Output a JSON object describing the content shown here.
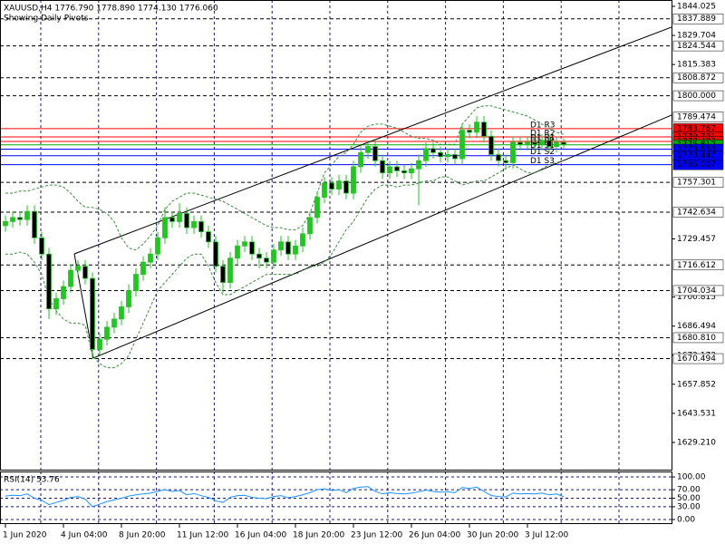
{
  "chart_data": {
    "type": "candlestick",
    "title": "XAUUSD,H4  1776.790 1778.890 1774.130 1776.060",
    "subtitle": "Showing Daily Pivots",
    "categories": [
      "1 Jun 2020",
      null,
      null,
      null,
      null,
      null,
      null,
      null,
      "4 Jun 04:00",
      null,
      null,
      null,
      null,
      null,
      null,
      null,
      "8 Jun 20:00",
      null,
      null,
      null,
      null,
      null,
      null,
      null,
      "11 Jun 12:00",
      null,
      null,
      null,
      null,
      null,
      null,
      null,
      "16 Jun 04:00",
      null,
      null,
      null,
      null,
      null,
      null,
      null,
      "18 Jun 20:00",
      null,
      null,
      null,
      null,
      null,
      null,
      null,
      "23 Jun 12:00",
      null,
      null,
      null,
      null,
      null,
      null,
      null,
      "26 Jun 04:00",
      null,
      null,
      null,
      null,
      null,
      null,
      null,
      "30 Jun 20:00",
      null,
      null,
      null,
      null,
      null,
      null,
      null,
      "3 Jul 12:00",
      null,
      null,
      null,
      null,
      null
    ],
    "open": [
      1736,
      1738,
      1740,
      1739,
      1743,
      1730,
      1722,
      1695,
      1700,
      1706,
      1714,
      1716,
      1710,
      1675,
      1680,
      1686,
      1690,
      1696,
      1704,
      1712,
      1718,
      1722,
      1730,
      1740,
      1738,
      1742,
      1735,
      1738,
      1733,
      1728,
      1716,
      1708,
      1720,
      1726,
      1728,
      1722,
      1720,
      1718,
      1724,
      1728,
      1722,
      1726,
      1732,
      1740,
      1750,
      1757,
      1754,
      1758,
      1752,
      1765,
      1772,
      1775,
      1768,
      1762,
      1765,
      1763,
      1762,
      1764,
      1768,
      1774,
      1772,
      1770,
      1771,
      1769,
      1783,
      1782,
      1787,
      1780,
      1771,
      1768,
      1767,
      1777,
      1776,
      1777,
      1776,
      1778,
      1775,
      1777
    ],
    "high": [
      1741,
      1743,
      1743,
      1746,
      1746,
      1733,
      1725,
      1703,
      1709,
      1717,
      1719,
      1719,
      1713,
      1683,
      1689,
      1693,
      1699,
      1707,
      1715,
      1721,
      1725,
      1733,
      1745,
      1743,
      1747,
      1745,
      1741,
      1741,
      1736,
      1731,
      1719,
      1723,
      1729,
      1731,
      1731,
      1725,
      1723,
      1727,
      1731,
      1731,
      1729,
      1735,
      1743,
      1753,
      1760,
      1760,
      1761,
      1761,
      1768,
      1775,
      1778,
      1778,
      1771,
      1768,
      1768,
      1766,
      1767,
      1771,
      1777,
      1777,
      1775,
      1774,
      1774,
      1786,
      1786,
      1790,
      1790,
      1783,
      1774,
      1771,
      1780,
      1780,
      1780,
      1780,
      1781,
      1781,
      1780,
      1779
    ],
    "low": [
      1733,
      1735,
      1736,
      1736,
      1727,
      1719,
      1690,
      1692,
      1697,
      1703,
      1711,
      1707,
      1670.5,
      1672,
      1677,
      1683,
      1687,
      1693,
      1701,
      1709,
      1715,
      1719,
      1727,
      1735,
      1735,
      1732,
      1732,
      1730,
      1725,
      1713,
      1703,
      1705,
      1717,
      1723,
      1719,
      1715,
      1715,
      1715,
      1721,
      1719,
      1719,
      1723,
      1729,
      1737,
      1747,
      1751,
      1751,
      1749,
      1749,
      1762,
      1769,
      1765,
      1759,
      1759,
      1760,
      1759,
      1759,
      1746,
      1765,
      1769,
      1767,
      1767,
      1766,
      1766,
      1779,
      1779,
      1777,
      1768,
      1765,
      1764,
      1764,
      1773,
      1773,
      1773,
      1773,
      1772,
      1772,
      1774
    ],
    "close": [
      1738,
      1740,
      1739,
      1743,
      1730,
      1722,
      1695,
      1700,
      1706,
      1714,
      1716,
      1710,
      1675,
      1680,
      1686,
      1690,
      1696,
      1704,
      1712,
      1718,
      1722,
      1730,
      1740,
      1738,
      1742,
      1735,
      1738,
      1733,
      1728,
      1716,
      1708,
      1720,
      1726,
      1728,
      1722,
      1720,
      1718,
      1724,
      1728,
      1722,
      1726,
      1732,
      1740,
      1750,
      1757,
      1754,
      1758,
      1752,
      1765,
      1772,
      1775,
      1768,
      1762,
      1765,
      1763,
      1762,
      1764,
      1768,
      1774,
      1772,
      1770,
      1771,
      1769,
      1783,
      1782,
      1787,
      1780,
      1771,
      1768,
      1767,
      1777,
      1776,
      1777,
      1776,
      1778,
      1775,
      1777,
      1776
    ],
    "up_color": "#22c522",
    "down_color": "#000000",
    "wick_color": "#22c522",
    "bollinger": {
      "color": "#3a8f3a",
      "upper": [
        1752,
        1752,
        1753,
        1753,
        1754,
        1755,
        1756,
        1756,
        1755,
        1752,
        1748,
        1745,
        1745,
        1744,
        1742,
        1738,
        1730,
        1725,
        1724,
        1727,
        1731,
        1736,
        1744,
        1748,
        1750,
        1752,
        1752,
        1751,
        1750,
        1749,
        1748,
        1746,
        1744,
        1742,
        1740,
        1738,
        1736,
        1735,
        1735,
        1734,
        1734,
        1736,
        1742,
        1752,
        1762,
        1766,
        1770,
        1772,
        1776,
        1782,
        1785,
        1786,
        1786,
        1785,
        1784,
        1782,
        1780,
        1779,
        1779,
        1778,
        1776,
        1776,
        1776,
        1786,
        1790,
        1794,
        1795,
        1795,
        1794,
        1793,
        1792,
        1791,
        1790,
        1788,
        1786,
        1784,
        1782,
        1781
      ],
      "lower": [
        1722,
        1722,
        1723,
        1722,
        1718,
        1712,
        1700,
        1694,
        1690,
        1688,
        1688,
        1687,
        1672,
        1668,
        1666,
        1666,
        1668,
        1672,
        1680,
        1688,
        1696,
        1704,
        1708,
        1712,
        1716,
        1720,
        1722,
        1722,
        1716,
        1708,
        1702,
        1702,
        1704,
        1706,
        1708,
        1710,
        1712,
        1712,
        1712,
        1712,
        1712,
        1714,
        1716,
        1716,
        1718,
        1722,
        1728,
        1734,
        1738,
        1744,
        1750,
        1754,
        1756,
        1756,
        1755,
        1756,
        1756,
        1757,
        1758,
        1758,
        1760,
        1760,
        1758,
        1756,
        1757,
        1758,
        1758,
        1760,
        1762,
        1764,
        1766,
        1764,
        1762,
        1762,
        1764,
        1766,
        1767,
        1768
      ]
    },
    "ylim": [
      1615.8,
      1847.15
    ],
    "yticks": [
      1844.025,
      1829.704,
      1815.383,
      1729.457,
      1700.815,
      1686.494,
      1672.173,
      1657.852,
      1643.531,
      {
        "value": 1629.21,
        "label": "1629.210"
      }
    ],
    "levels": [
      1837.889,
      1824.544,
      1808.872,
      {
        "value": 1800,
        "label": "1800.000"
      },
      1757.301,
      1742.634,
      1716.612,
      1704.034,
      {
        "value": 1680.81,
        "label": "1680.810"
      },
      1670.494
    ],
    "channel_price": 1789.474,
    "pivots": [
      {
        "name": "D1 R3",
        "value": 1783.767,
        "color": "#ff0000"
      },
      {
        "name": "D1 R2",
        "value": 1779.721,
        "color": "#ff0000"
      },
      {
        "name": "D1 R1",
        "value": 1777.483,
        "color": "#ff0000"
      },
      {
        "name": "D1 PP",
        "value": 1775.812,
        "color": "#00aa00"
      },
      {
        "name": "D1 S1",
        "value": 1773.658,
        "color": "#0000ff"
      },
      {
        "name": "D1 S2",
        "value": 1770.447,
        "color": "#0000ff"
      },
      {
        "name": "D1 S3",
        "value": 1766.007,
        "color": "#0000ff"
      }
    ],
    "rsi": {
      "title": "RSI(14) 53.76",
      "color": "#1e90ff",
      "grid": true,
      "values": [
        55,
        57,
        56,
        60,
        50,
        45,
        35,
        40,
        45,
        52,
        54,
        48,
        30,
        36,
        42,
        46,
        50,
        55,
        58,
        60,
        62,
        66,
        70,
        66,
        68,
        58,
        61,
        56,
        52,
        44,
        40,
        52,
        56,
        57,
        52,
        50,
        49,
        54,
        56,
        51,
        54,
        58,
        63,
        70,
        72,
        68,
        70,
        63,
        73,
        76,
        77,
        66,
        60,
        63,
        61,
        60,
        62,
        65,
        69,
        66,
        64,
        65,
        63,
        75,
        73,
        76,
        66,
        56,
        54,
        53,
        62,
        60,
        61,
        60,
        62,
        58,
        60,
        53.76
      ],
      "ylim": [
        -10.6,
        110.6
      ],
      "yticks": [
        {
          "value": 100,
          "label": "100.00"
        },
        {
          "value": 70,
          "label": "70.00"
        },
        {
          "value": 50,
          "label": "50.00"
        },
        {
          "value": 30,
          "label": "30.00"
        },
        {
          "value": 0,
          "label": "0.00"
        }
      ]
    }
  }
}
